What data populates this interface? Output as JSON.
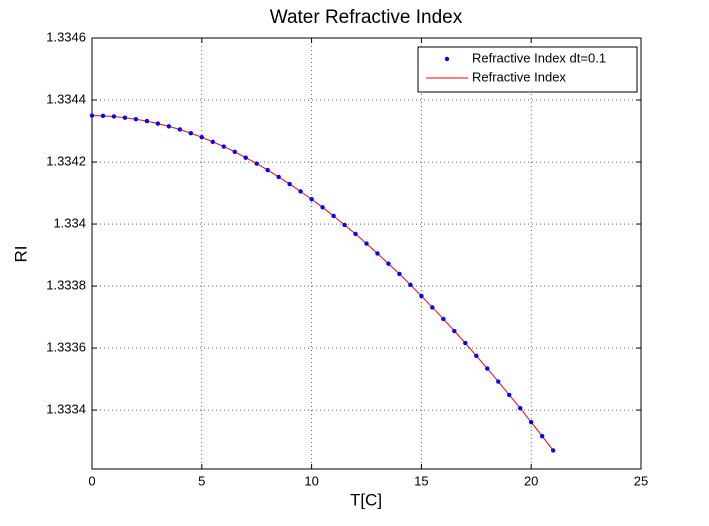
{
  "chart_data": {
    "type": "line",
    "title": "Water Refractive Index",
    "xlabel": "T[C]",
    "ylabel": "RI",
    "x": [
      0,
      0.5,
      1,
      1.5,
      2,
      2.5,
      3,
      3.5,
      4,
      4.5,
      5,
      5.5,
      6,
      6.5,
      7,
      7.5,
      8,
      8.5,
      9,
      9.5,
      10,
      10.5,
      11,
      11.5,
      12,
      12.5,
      13,
      13.5,
      14,
      14.5,
      15,
      15.5,
      16,
      16.5,
      17,
      17.5,
      18,
      18.5,
      19,
      19.5,
      20,
      20.5,
      21
    ],
    "series": [
      {
        "name": "Refractive Index dt=0.1",
        "color": "#0000ff",
        "marker": "dot",
        "values": [
          1.33435,
          1.334349,
          1.334347,
          1.334343,
          1.334338,
          1.334332,
          1.334324,
          1.334315,
          1.334305,
          1.334293,
          1.33428,
          1.334265,
          1.33425,
          1.334233,
          1.334214,
          1.334195,
          1.334174,
          1.334152,
          1.334129,
          1.334105,
          1.33408,
          1.334054,
          1.334026,
          1.333997,
          1.333968,
          1.333937,
          1.333905,
          1.333872,
          1.333839,
          1.333804,
          1.333768,
          1.333731,
          1.333694,
          1.333655,
          1.333616,
          1.333575,
          1.333534,
          1.333492,
          1.333449,
          1.333406,
          1.333361,
          1.333316,
          1.33327
        ]
      },
      {
        "name": "Refractive Index",
        "color": "#ff0000",
        "marker": "line",
        "values": [
          1.33435,
          1.334349,
          1.334347,
          1.334343,
          1.334338,
          1.334332,
          1.334324,
          1.334315,
          1.334305,
          1.334293,
          1.33428,
          1.334265,
          1.33425,
          1.334233,
          1.334214,
          1.334195,
          1.334174,
          1.334152,
          1.334129,
          1.334105,
          1.33408,
          1.334054,
          1.334026,
          1.333997,
          1.333968,
          1.333937,
          1.333905,
          1.333872,
          1.333839,
          1.333804,
          1.333768,
          1.333731,
          1.333694,
          1.333655,
          1.333616,
          1.333575,
          1.333534,
          1.333492,
          1.333449,
          1.333406,
          1.333361,
          1.333316,
          1.33327
        ]
      }
    ],
    "xlim": [
      0,
      25
    ],
    "xticks": [
      0,
      5,
      10,
      15,
      20,
      25
    ],
    "ylim": [
      1.33321,
      1.3346
    ],
    "yticks": [
      1.3334,
      1.3336,
      1.3338,
      1.334,
      1.3342,
      1.3344,
      1.3346
    ],
    "grid": true,
    "legend": "northeast"
  }
}
